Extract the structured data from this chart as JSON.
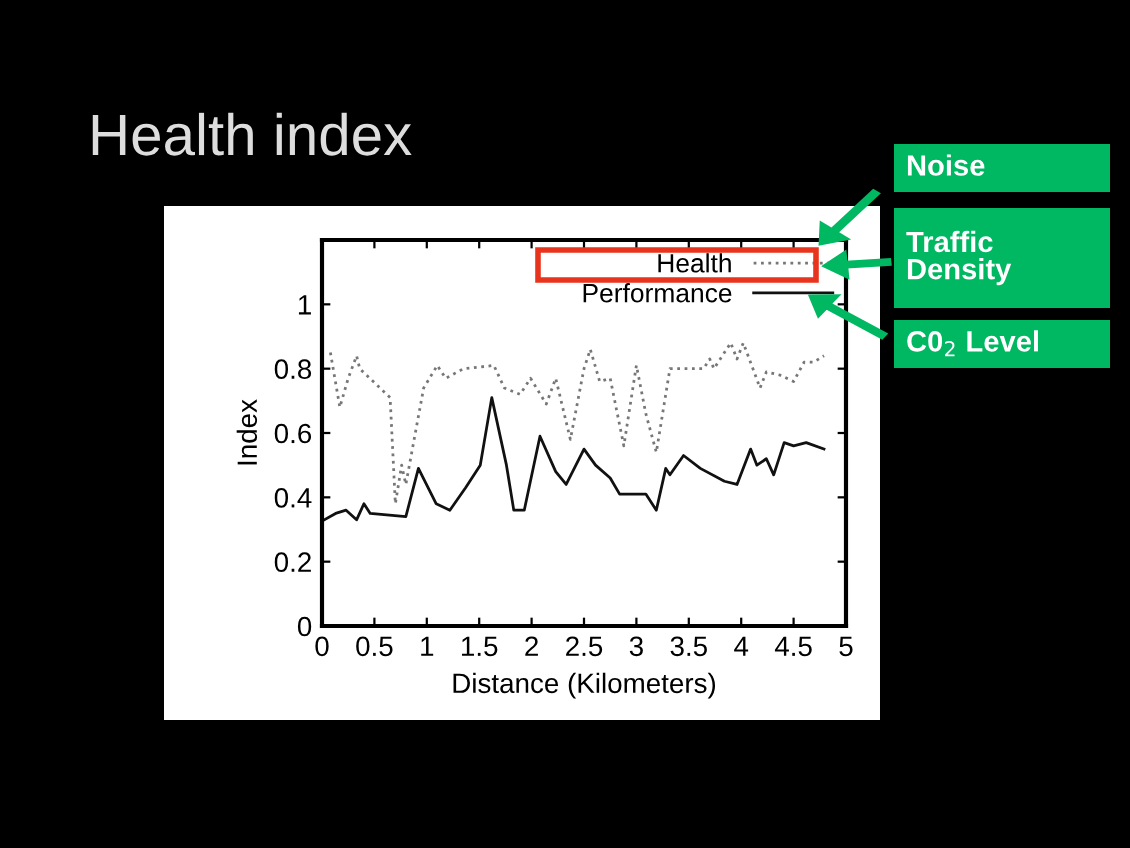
{
  "chart_data": {
    "type": "line",
    "title": "Health index",
    "xlabel": "Distance (Kilometers)",
    "ylabel": "Index",
    "xlim": [
      0,
      5
    ],
    "xticks": [
      0,
      0.5,
      1,
      1.5,
      2,
      2.5,
      3,
      3.5,
      4,
      4.5,
      5
    ],
    "ylim": [
      0,
      1.2
    ],
    "yticks": [
      0,
      0.2,
      0.4,
      0.6,
      0.8,
      1
    ],
    "grid": false,
    "legend": "top right",
    "marker": "none",
    "annotations": [
      "Noise",
      "Traffic Density",
      "C0$_{2}$ Level"
    ],
    "series": [
      {
        "name": "Health",
        "color": "#777777",
        "line_style": "dotted",
        "x": [
          0.08,
          0.17,
          0.25,
          0.33,
          0.36,
          0.65,
          0.7,
          0.76,
          0.8,
          0.97,
          1.1,
          1.18,
          1.35,
          1.64,
          1.74,
          1.89,
          1.99,
          2.14,
          2.23,
          2.37,
          2.5,
          2.56,
          2.65,
          2.75,
          2.88,
          3.0,
          3.09,
          3.19,
          3.32,
          3.64,
          3.7,
          3.74,
          3.9,
          3.96,
          4.02,
          4.18,
          4.24,
          4.37,
          4.5,
          4.6,
          4.69,
          4.79
        ],
        "values": [
          0.85,
          0.68,
          0.77,
          0.84,
          0.8,
          0.71,
          0.38,
          0.5,
          0.44,
          0.74,
          0.81,
          0.77,
          0.8,
          0.81,
          0.74,
          0.72,
          0.77,
          0.69,
          0.77,
          0.58,
          0.8,
          0.86,
          0.76,
          0.77,
          0.56,
          0.81,
          0.66,
          0.54,
          0.8,
          0.8,
          0.83,
          0.8,
          0.88,
          0.83,
          0.88,
          0.74,
          0.79,
          0.78,
          0.76,
          0.82,
          0.82,
          0.84
        ]
      },
      {
        "name": "Performance",
        "color": "#111111",
        "line_style": "solid",
        "x": [
          0.02,
          0.13,
          0.23,
          0.33,
          0.4,
          0.46,
          0.8,
          0.92,
          1.09,
          1.22,
          1.37,
          1.51,
          1.62,
          1.76,
          1.83,
          1.93,
          2.08,
          2.23,
          2.33,
          2.5,
          2.61,
          2.75,
          2.84,
          3.09,
          3.19,
          3.28,
          3.32,
          3.45,
          3.61,
          3.84,
          3.96,
          4.09,
          4.15,
          4.24,
          4.31,
          4.41,
          4.5,
          4.62,
          4.79
        ],
        "values": [
          0.33,
          0.35,
          0.36,
          0.33,
          0.38,
          0.35,
          0.34,
          0.49,
          0.38,
          0.36,
          0.43,
          0.5,
          0.71,
          0.5,
          0.36,
          0.36,
          0.59,
          0.48,
          0.44,
          0.55,
          0.5,
          0.46,
          0.41,
          0.41,
          0.36,
          0.49,
          0.47,
          0.53,
          0.49,
          0.45,
          0.44,
          0.55,
          0.5,
          0.52,
          0.47,
          0.57,
          0.56,
          0.57,
          0.55
        ]
      }
    ]
  }
}
